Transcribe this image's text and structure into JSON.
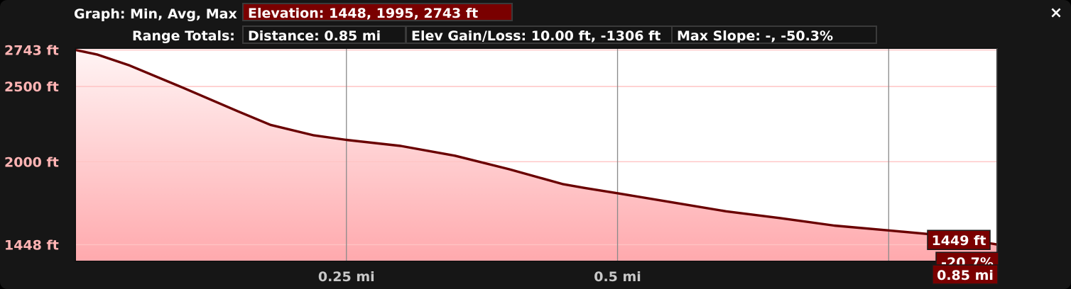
{
  "header": {
    "graph_label": "Graph: Min, Avg, Max",
    "elevation_value": "Elevation: 1448, 1995, 2743 ft",
    "range_label": "Range Totals:",
    "distance_value": "Distance: 0.85 mi",
    "gain_loss_value": "Elev Gain/Loss: 10.00 ft, -1306 ft",
    "max_slope_value": "Max Slope: -, -50.3%"
  },
  "close_icon": "×",
  "cursor": {
    "elevation_label": "1449 ft",
    "slope_label": "-20.7%",
    "distance_label": "0.85 mi",
    "distance": 0.85,
    "elevation": 1449
  },
  "colors": {
    "profile_line": "#6a0000",
    "fill_top": "#fff4f4",
    "fill_bottom": "#ffa9ad",
    "y_tick_text": "#ffb4b4",
    "x_tick_text": "#c8c8c8",
    "label_box": "#7a0000"
  },
  "chart_data": {
    "type": "area",
    "xlabel": "",
    "ylabel": "",
    "xlim": [
      0,
      0.85
    ],
    "ylim": [
      1337,
      2755
    ],
    "y_ticks": [
      {
        "value": 2743,
        "label": "2743 ft"
      },
      {
        "value": 2500,
        "label": "2500 ft"
      },
      {
        "value": 2000,
        "label": "2000 ft"
      },
      {
        "value": 1448,
        "label": "1448 ft"
      }
    ],
    "x_ticks": [
      {
        "value": 0.25,
        "label": "0.25 mi"
      },
      {
        "value": 0.5,
        "label": "0.5 mi"
      }
    ],
    "grid": true,
    "series": [
      {
        "x": [
          0.0,
          0.02,
          0.05,
          0.1,
          0.15,
          0.18,
          0.22,
          0.25,
          0.3,
          0.35,
          0.4,
          0.45,
          0.47,
          0.5,
          0.55,
          0.6,
          0.65,
          0.7,
          0.75,
          0.8,
          0.85
        ],
        "y": [
          2743,
          2713,
          2640,
          2490,
          2335,
          2245,
          2175,
          2145,
          2105,
          2040,
          1950,
          1850,
          1825,
          1790,
          1730,
          1670,
          1625,
          1575,
          1543,
          1510,
          1449
        ]
      }
    ]
  }
}
